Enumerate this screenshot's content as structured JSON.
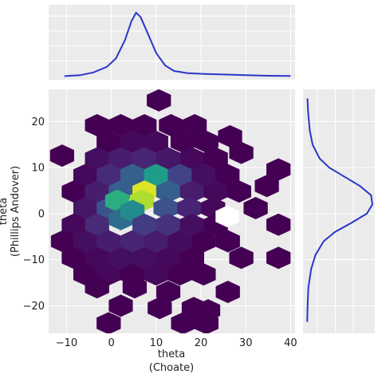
{
  "chart_data": {
    "type": "hexbin-joint",
    "xlabel": [
      "theta",
      "(Choate)"
    ],
    "ylabel": [
      "theta",
      "(Phillips Andover)"
    ],
    "xlim": [
      -14,
      41
    ],
    "ylim": [
      -26,
      27
    ],
    "xticks": [
      -10,
      0,
      10,
      20,
      30,
      40
    ],
    "yticks": [
      -20,
      -10,
      0,
      10,
      20
    ],
    "grid": true,
    "colormap": [
      "#440154",
      "#482878",
      "#3e4a89",
      "#31688e",
      "#26828e",
      "#1f9e89",
      "#35b779",
      "#6ece58",
      "#b5de2b",
      "#fde725"
    ],
    "background": "#ebebeb",
    "kde_color": "#2b35c8",
    "hexbin": {
      "gridsize_x": 5.3,
      "gridsize_y": 3.6,
      "cells": [
        {
          "x": 10.6,
          "y": 24.6,
          "d": 0.0
        },
        {
          "x": -3.2,
          "y": 19.2,
          "d": 0.0
        },
        {
          "x": 2.1,
          "y": 19.2,
          "d": 0.0
        },
        {
          "x": 7.4,
          "y": 19.2,
          "d": 0.0
        },
        {
          "x": 13.3,
          "y": 19.2,
          "d": 0.0
        },
        {
          "x": 18.6,
          "y": 19.2,
          "d": 0.0
        },
        {
          "x": -0.6,
          "y": 15.6,
          "d": 0.0
        },
        {
          "x": 4.7,
          "y": 15.6,
          "d": 0.02
        },
        {
          "x": 10.0,
          "y": 15.6,
          "d": 0.02
        },
        {
          "x": 15.9,
          "y": 15.6,
          "d": 0.0
        },
        {
          "x": 21.2,
          "y": 15.6,
          "d": 0.0
        },
        {
          "x": 26.5,
          "y": 16.8,
          "d": 0.0
        },
        {
          "x": -11.0,
          "y": 12.6,
          "d": 0.0
        },
        {
          "x": -3.2,
          "y": 12.0,
          "d": 0.04
        },
        {
          "x": 2.1,
          "y": 12.0,
          "d": 0.08
        },
        {
          "x": 7.4,
          "y": 12.0,
          "d": 0.1
        },
        {
          "x": 12.7,
          "y": 12.0,
          "d": 0.06
        },
        {
          "x": 18.0,
          "y": 12.0,
          "d": 0.02
        },
        {
          "x": 23.3,
          "y": 12.0,
          "d": 0.0
        },
        {
          "x": 29.0,
          "y": 13.2,
          "d": 0.0
        },
        {
          "x": -5.8,
          "y": 8.4,
          "d": 0.02
        },
        {
          "x": -0.6,
          "y": 8.4,
          "d": 0.12
        },
        {
          "x": 4.7,
          "y": 8.4,
          "d": 0.3
        },
        {
          "x": 10.0,
          "y": 8.4,
          "d": 0.55
        },
        {
          "x": 15.3,
          "y": 8.4,
          "d": 0.2
        },
        {
          "x": 20.6,
          "y": 8.4,
          "d": 0.04
        },
        {
          "x": 25.9,
          "y": 8.4,
          "d": 0.0
        },
        {
          "x": 37.3,
          "y": 9.6,
          "d": 0.0
        },
        {
          "x": -8.4,
          "y": 4.8,
          "d": 0.0
        },
        {
          "x": -3.2,
          "y": 4.8,
          "d": 0.08
        },
        {
          "x": 2.1,
          "y": 4.8,
          "d": 0.3
        },
        {
          "x": 7.4,
          "y": 4.8,
          "d": 0.95
        },
        {
          "x": 12.7,
          "y": 4.8,
          "d": 0.3
        },
        {
          "x": 18.0,
          "y": 4.8,
          "d": 0.08
        },
        {
          "x": 23.3,
          "y": 4.8,
          "d": 0.02
        },
        {
          "x": 28.5,
          "y": 4.8,
          "d": 0.0
        },
        {
          "x": 34.7,
          "y": 6.0,
          "d": 0.0
        },
        {
          "x": -5.8,
          "y": 1.2,
          "d": 0.06
        },
        {
          "x": -0.6,
          "y": 1.2,
          "d": 0.25
        },
        {
          "x": 1.3,
          "y": 2.8,
          "d": 0.62
        },
        {
          "x": 6.8,
          "y": 2.8,
          "d": 0.88
        },
        {
          "x": 12.1,
          "y": 1.2,
          "d": 0.25
        },
        {
          "x": 17.4,
          "y": 1.2,
          "d": 0.1
        },
        {
          "x": 22.7,
          "y": 1.2,
          "d": 0.02
        },
        {
          "x": 32.2,
          "y": 1.2,
          "d": 0.0
        },
        {
          "x": -8.4,
          "y": -2.4,
          "d": 0.02
        },
        {
          "x": -3.2,
          "y": -2.4,
          "d": 0.12
        },
        {
          "x": 2.1,
          "y": -1.2,
          "d": 0.35
        },
        {
          "x": 4.7,
          "y": 0.6,
          "d": 0.48
        },
        {
          "x": 7.4,
          "y": -2.4,
          "d": 0.18
        },
        {
          "x": 12.7,
          "y": -2.4,
          "d": 0.14
        },
        {
          "x": 18.0,
          "y": -2.4,
          "d": 0.04
        },
        {
          "x": 23.3,
          "y": -2.4,
          "d": 0.0
        },
        {
          "x": 37.3,
          "y": -2.4,
          "d": 0.0
        },
        {
          "x": -10.8,
          "y": -6.0,
          "d": 0.0
        },
        {
          "x": -5.8,
          "y": -6.0,
          "d": 0.04
        },
        {
          "x": -0.6,
          "y": -6.0,
          "d": 0.08
        },
        {
          "x": 4.7,
          "y": -6.0,
          "d": 0.1
        },
        {
          "x": 10.0,
          "y": -6.0,
          "d": 0.08
        },
        {
          "x": 15.3,
          "y": -6.0,
          "d": 0.03
        },
        {
          "x": 20.6,
          "y": -6.0,
          "d": 0.0
        },
        {
          "x": 26.0,
          "y": -6.0,
          "d": 0.0
        },
        {
          "x": -8.4,
          "y": -9.6,
          "d": 0.0
        },
        {
          "x": -3.2,
          "y": -9.6,
          "d": 0.02
        },
        {
          "x": 2.1,
          "y": -9.6,
          "d": 0.04
        },
        {
          "x": 7.4,
          "y": -9.6,
          "d": 0.04
        },
        {
          "x": 12.7,
          "y": -9.6,
          "d": 0.02
        },
        {
          "x": 18.0,
          "y": -9.6,
          "d": 0.0
        },
        {
          "x": 29.0,
          "y": -9.6,
          "d": 0.0
        },
        {
          "x": 37.3,
          "y": -9.6,
          "d": 0.0
        },
        {
          "x": -5.8,
          "y": -13.2,
          "d": 0.0
        },
        {
          "x": -0.6,
          "y": -13.2,
          "d": 0.02
        },
        {
          "x": 4.7,
          "y": -13.2,
          "d": 0.0
        },
        {
          "x": 10.0,
          "y": -13.2,
          "d": 0.02
        },
        {
          "x": 15.3,
          "y": -13.2,
          "d": 0.0
        },
        {
          "x": 20.6,
          "y": -13.2,
          "d": 0.0
        },
        {
          "x": -3.2,
          "y": -16.0,
          "d": 0.0
        },
        {
          "x": 5.2,
          "y": -16.0,
          "d": 0.0
        },
        {
          "x": 12.7,
          "y": -17.0,
          "d": 0.0
        },
        {
          "x": 26.0,
          "y": -17.0,
          "d": 0.0
        },
        {
          "x": 2.1,
          "y": -20.0,
          "d": 0.0
        },
        {
          "x": 10.8,
          "y": -20.5,
          "d": 0.0
        },
        {
          "x": 18.4,
          "y": -20.5,
          "d": 0.0
        },
        {
          "x": 21.6,
          "y": -21.0,
          "d": 0.0
        },
        {
          "x": -0.6,
          "y": -23.8,
          "d": 0.0
        },
        {
          "x": 16.0,
          "y": -23.8,
          "d": 0.0
        },
        {
          "x": 21.2,
          "y": -23.8,
          "d": 0.0
        }
      ],
      "holes": [
        {
          "x": 25.9,
          "y": -0.6
        }
      ]
    },
    "kde_x": {
      "x": [
        -10.5,
        -7,
        -4,
        -1,
        1,
        3,
        4.5,
        5.5,
        6.5,
        8,
        10,
        12,
        14,
        17,
        20,
        25,
        30,
        35,
        40
      ],
      "y": [
        0.003,
        0.01,
        0.03,
        0.07,
        0.13,
        0.26,
        0.4,
        0.46,
        0.43,
        0.32,
        0.17,
        0.08,
        0.04,
        0.025,
        0.02,
        0.015,
        0.01,
        0.006,
        0.004
      ]
    },
    "kde_y": {
      "y": [
        -23.5,
        -20,
        -16,
        -12,
        -9,
        -6,
        -4,
        -2,
        0,
        2,
        4,
        6,
        8,
        10,
        12,
        15,
        18,
        22,
        25
      ],
      "x": [
        0.002,
        0.004,
        0.01,
        0.03,
        0.06,
        0.12,
        0.2,
        0.32,
        0.43,
        0.47,
        0.46,
        0.38,
        0.27,
        0.16,
        0.09,
        0.04,
        0.02,
        0.008,
        0.003
      ]
    }
  }
}
